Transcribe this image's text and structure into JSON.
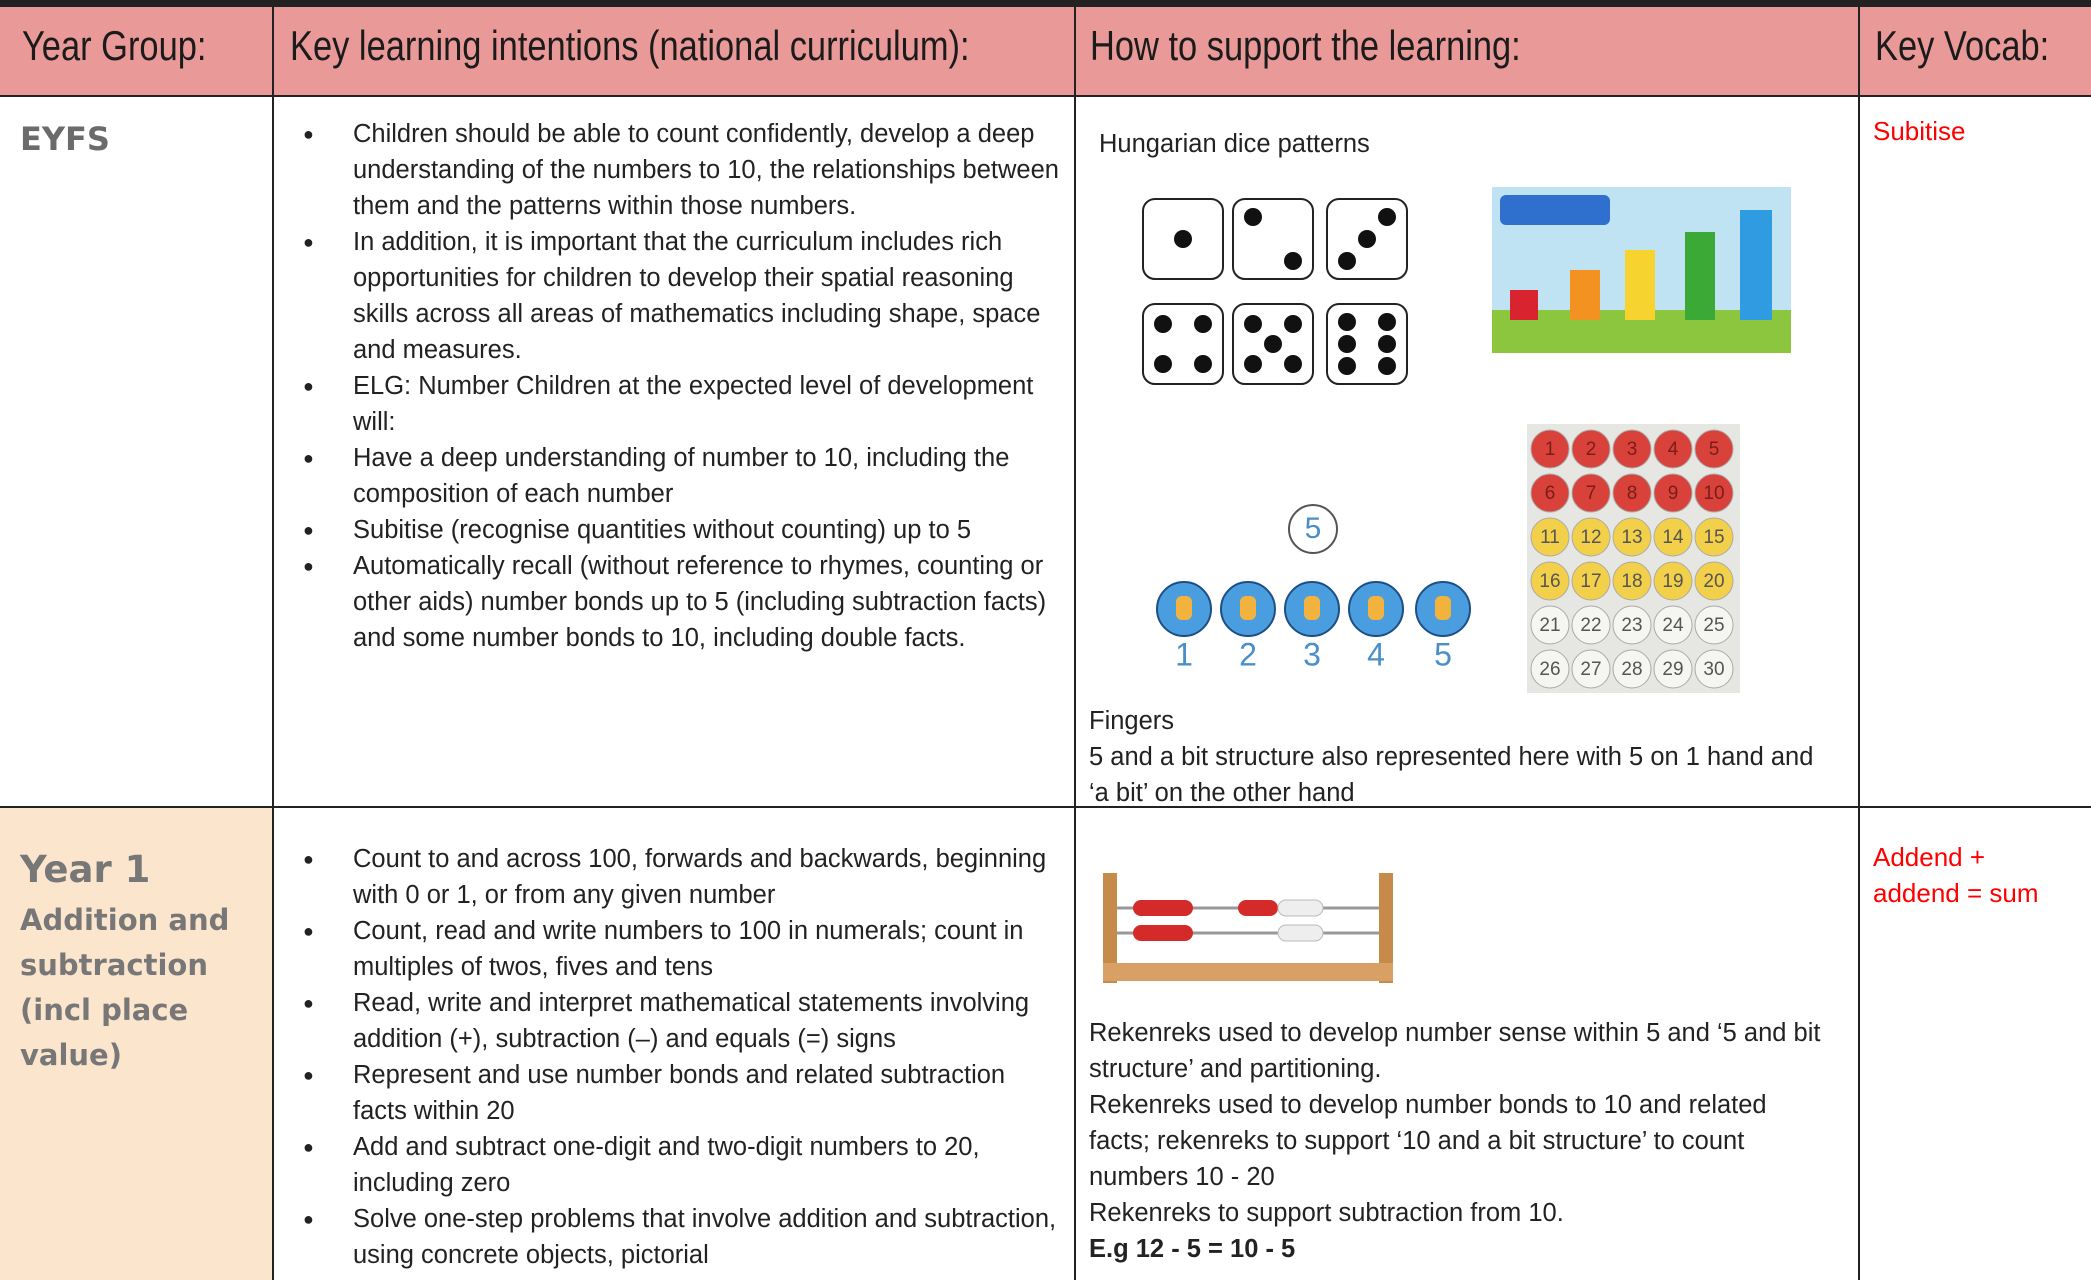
{
  "header": {
    "columns": [
      "Year Group:",
      "Key learning intentions (national curriculum):",
      "How to support the learning:",
      "Key Vocab:"
    ]
  },
  "rows": [
    {
      "year": "EYFS",
      "intentions": [
        "Children should be able to count confidently, develop a deep understanding of the numbers to 10, the relationships between them and the patterns within those numbers.",
        "In addition, it is important that the curriculum includes rich opportunities for children to develop their spatial reasoning skills across all areas of mathematics including shape, space and measures.",
        "ELG: Number Children at the expected level of development will:",
        "Have a deep understanding of number to 10, including the composition of each number",
        "Subitise (recognise quantities without counting) up to 5",
        "Automatically recall (without reference to rhymes, counting or other aids) number bonds up to 5 (including subtraction facts) and some number bonds to 10, including double facts."
      ],
      "support": {
        "caption": "Hungarian dice patterns",
        "text": [
          "Fingers",
          "5 and a bit structure also represented here with 5 on 1 hand and ‘a bit’ on the other hand"
        ]
      },
      "vocab": "Subitise"
    },
    {
      "year": "Year 1",
      "subtitle": "Addition and subtraction (incl place value)",
      "intentions": [
        "Count to and across 100, forwards and backwards, beginning with 0 or 1, or from any given number",
        "Count, read and write numbers to 100 in numerals; count in multiples of twos, fives and tens",
        "Read, write and interpret mathematical statements involving addition (+), subtraction (–) and equals (=) signs",
        "Represent and use number bonds and related subtraction facts within 20",
        "Add and subtract one-digit and two-digit numbers to 20, including zero",
        "Solve one-step problems that involve addition and subtraction, using concrete objects, pictorial"
      ],
      "support": {
        "text": [
          "Rekenreks used to develop number sense within 5 and ‘5 and bit structure’ and partitioning.",
          "Rekenreks used to develop number bonds to 10 and related facts; rekenreks to support ‘10 and a bit structure’ to count numbers 10 - 20",
          "Rekenreks to support subtraction from 10."
        ],
        "example": "E.g 12 - 5 = 10 - 5"
      },
      "vocab": "Addend + addend = sum"
    }
  ],
  "images": {
    "number_card": "5",
    "finger_numbers": [
      "1",
      "2",
      "3",
      "4",
      "5"
    ],
    "number_chart": [
      "1",
      "2",
      "3",
      "4",
      "5",
      "6",
      "7",
      "8",
      "9",
      "10",
      "11",
      "12",
      "13",
      "14",
      "15",
      "16",
      "17",
      "18",
      "19",
      "20",
      "21",
      "22",
      "23",
      "24",
      "25",
      "26",
      "27",
      "28",
      "29",
      "30"
    ]
  }
}
